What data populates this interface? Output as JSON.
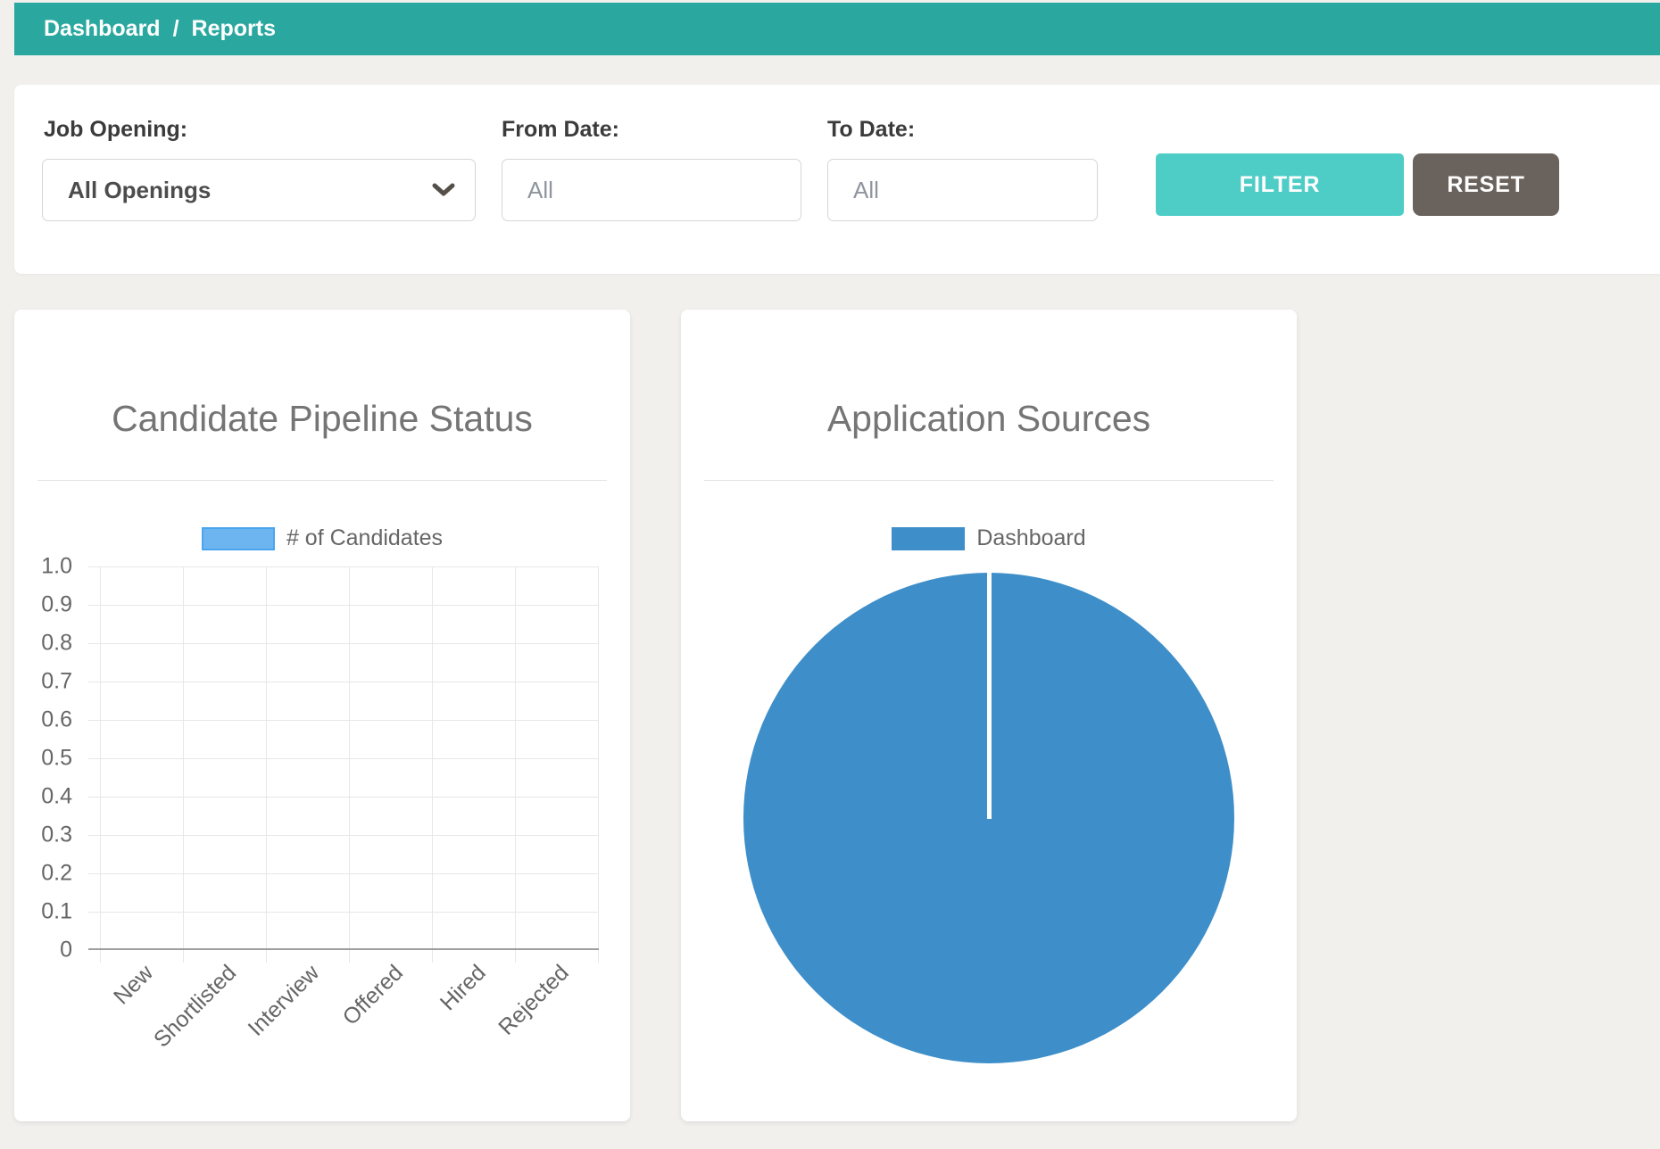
{
  "breadcrumb": {
    "items": [
      {
        "label": "Dashboard"
      },
      {
        "label": "Reports"
      }
    ],
    "separator": "/"
  },
  "filters": {
    "job_opening": {
      "label": "Job Opening:",
      "value": "All Openings"
    },
    "from_date": {
      "label": "From Date:",
      "placeholder": "All"
    },
    "to_date": {
      "label": "To Date:",
      "placeholder": "All"
    },
    "filter_button": "FILTER",
    "reset_button": "RESET"
  },
  "colors": {
    "accent_teal": "#2AA8A0",
    "page_bg": "#F2F0ED",
    "filter_btn": "#4ECDC7",
    "reset_btn": "#6A625C",
    "bar_fill": "#6CB5F0",
    "bar_border": "#49A5EE",
    "pie_blue": "#3D8EC9",
    "grid": "#E7E7E7",
    "axis": "#9E9E9E"
  },
  "chart_data": [
    {
      "type": "bar",
      "title": "Candidate Pipeline Status",
      "categories": [
        "New",
        "Shortlisted",
        "Interview",
        "Offered",
        "Hired",
        "Rejected"
      ],
      "series": [
        {
          "name": "# of Candidates",
          "values": [
            0,
            0,
            0,
            0,
            0,
            0
          ]
        }
      ],
      "legend": [
        {
          "label": "# of Candidates",
          "color": "#6CB5F0",
          "border": "#49A5EE"
        }
      ],
      "legend_position": "top",
      "xlabel": "",
      "ylabel": "",
      "ylim": [
        0,
        1
      ],
      "yticks": [
        "1.0",
        "0.9",
        "0.8",
        "0.7",
        "0.6",
        "0.5",
        "0.4",
        "0.3",
        "0.2",
        "0.1",
        "0"
      ],
      "grid": true,
      "x_label_rotation_deg": -45
    },
    {
      "type": "pie",
      "title": "Application Sources",
      "slices": [
        {
          "label": "Dashboard",
          "value": 100,
          "color": "#3D8EC9"
        }
      ],
      "legend": [
        {
          "label": "Dashboard",
          "color": "#3D8EC9"
        }
      ],
      "legend_position": "top",
      "slice_border_color": "#FFFFFF"
    }
  ]
}
